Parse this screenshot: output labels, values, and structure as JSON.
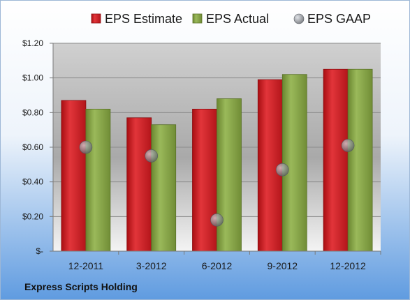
{
  "chart_data": {
    "type": "bar",
    "categories": [
      "12-2011",
      "3-2012",
      "6-2012",
      "9-2012",
      "12-2012"
    ],
    "series": [
      {
        "name": "EPS Estimate",
        "kind": "bar",
        "color": "#c8181d",
        "values": [
          0.87,
          0.77,
          0.82,
          0.99,
          1.05
        ]
      },
      {
        "name": "EPS Actual",
        "kind": "bar",
        "color": "#7f9d3f",
        "values": [
          0.82,
          0.73,
          0.88,
          1.02,
          1.05
        ]
      },
      {
        "name": "EPS GAAP",
        "kind": "marker",
        "color": "#a0a6ad",
        "values": [
          0.6,
          0.55,
          0.18,
          0.47,
          0.61
        ]
      }
    ],
    "yticks": [
      {
        "value": 0,
        "label": "$-"
      },
      {
        "value": 0.2,
        "label": "$0.20"
      },
      {
        "value": 0.4,
        "label": "$0.40"
      },
      {
        "value": 0.6,
        "label": "$0.60"
      },
      {
        "value": 0.8,
        "label": "$0.80"
      },
      {
        "value": 1.0,
        "label": "$1.00"
      },
      {
        "value": 1.2,
        "label": "$1.20"
      }
    ],
    "ylim": [
      0,
      1.2
    ],
    "grid": true,
    "legend_position": "top"
  },
  "footer": {
    "company": "Express Scripts Holding"
  }
}
